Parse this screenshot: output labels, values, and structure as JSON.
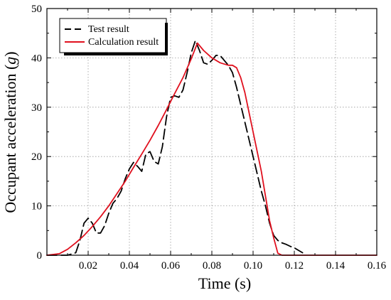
{
  "chart_data": {
    "type": "line",
    "xlabel": "Time (s)",
    "ylabel_main": "Occupant acceleration (",
    "ylabel_unit": "g",
    "ylabel_close": ")",
    "xlim": [
      0,
      0.16
    ],
    "ylim": [
      0,
      50
    ],
    "x_ticks": [
      0.02,
      0.04,
      0.06,
      0.08,
      0.1,
      0.12,
      0.14,
      0.16
    ],
    "x_tick_labels": [
      "0.02",
      "0.04",
      "0.06",
      "0.08",
      "0.10",
      "0.12",
      "0.14",
      "0.16"
    ],
    "y_ticks": [
      0,
      10,
      20,
      30,
      40,
      50
    ],
    "y_tick_labels": [
      "0",
      "10",
      "20",
      "30",
      "40",
      "50"
    ],
    "grid": "dotted",
    "legend_position": "top-left",
    "series": [
      {
        "name": "Test result",
        "color": "#000000",
        "style": "dashed",
        "points": [
          [
            0.0,
            0
          ],
          [
            0.01,
            0
          ],
          [
            0.014,
            0.5
          ],
          [
            0.016,
            3
          ],
          [
            0.018,
            6.5
          ],
          [
            0.02,
            7.5
          ],
          [
            0.022,
            6.5
          ],
          [
            0.024,
            4.5
          ],
          [
            0.026,
            4.5
          ],
          [
            0.028,
            6
          ],
          [
            0.03,
            8.5
          ],
          [
            0.032,
            10.5
          ],
          [
            0.034,
            11.5
          ],
          [
            0.036,
            13
          ],
          [
            0.038,
            15.5
          ],
          [
            0.04,
            17.5
          ],
          [
            0.042,
            18.8
          ],
          [
            0.044,
            18
          ],
          [
            0.046,
            17
          ],
          [
            0.048,
            20.5
          ],
          [
            0.05,
            21
          ],
          [
            0.052,
            19
          ],
          [
            0.054,
            18.5
          ],
          [
            0.056,
            22
          ],
          [
            0.058,
            28
          ],
          [
            0.06,
            32
          ],
          [
            0.062,
            32.3
          ],
          [
            0.064,
            32
          ],
          [
            0.066,
            33.5
          ],
          [
            0.068,
            37
          ],
          [
            0.07,
            41
          ],
          [
            0.072,
            43.5
          ],
          [
            0.074,
            41.5
          ],
          [
            0.076,
            39
          ],
          [
            0.078,
            38.7
          ],
          [
            0.08,
            39.5
          ],
          [
            0.082,
            40.5
          ],
          [
            0.084,
            40.5
          ],
          [
            0.086,
            39.5
          ],
          [
            0.088,
            38.5
          ],
          [
            0.09,
            37
          ],
          [
            0.092,
            34
          ],
          [
            0.094,
            30.5
          ],
          [
            0.096,
            27
          ],
          [
            0.098,
            23.5
          ],
          [
            0.1,
            20
          ],
          [
            0.102,
            16.5
          ],
          [
            0.104,
            13
          ],
          [
            0.106,
            10
          ],
          [
            0.108,
            6.5
          ],
          [
            0.11,
            4
          ],
          [
            0.112,
            3
          ],
          [
            0.114,
            2.5
          ],
          [
            0.116,
            2.2
          ],
          [
            0.118,
            1.8
          ],
          [
            0.12,
            1.5
          ],
          [
            0.122,
            1
          ],
          [
            0.124,
            0.5
          ]
        ]
      },
      {
        "name": "Calculation result",
        "color": "#e0101e",
        "style": "solid",
        "points": [
          [
            0.0,
            0
          ],
          [
            0.006,
            0.3
          ],
          [
            0.01,
            1.2
          ],
          [
            0.014,
            2.5
          ],
          [
            0.018,
            4
          ],
          [
            0.022,
            5.8
          ],
          [
            0.026,
            7.8
          ],
          [
            0.03,
            10
          ],
          [
            0.034,
            12.5
          ],
          [
            0.038,
            15
          ],
          [
            0.042,
            17.8
          ],
          [
            0.046,
            20.5
          ],
          [
            0.05,
            23.3
          ],
          [
            0.054,
            26.3
          ],
          [
            0.058,
            29.5
          ],
          [
            0.062,
            32.8
          ],
          [
            0.066,
            36
          ],
          [
            0.07,
            39.8
          ],
          [
            0.073,
            43
          ],
          [
            0.076,
            41.5
          ],
          [
            0.08,
            40
          ],
          [
            0.084,
            39
          ],
          [
            0.088,
            38.5
          ],
          [
            0.09,
            38.5
          ],
          [
            0.092,
            38
          ],
          [
            0.094,
            36
          ],
          [
            0.096,
            33
          ],
          [
            0.098,
            29
          ],
          [
            0.1,
            25
          ],
          [
            0.102,
            21
          ],
          [
            0.104,
            17
          ],
          [
            0.106,
            12
          ],
          [
            0.108,
            7
          ],
          [
            0.11,
            3.5
          ],
          [
            0.112,
            0.4
          ],
          [
            0.114,
            0
          ],
          [
            0.16,
            0
          ]
        ]
      }
    ]
  }
}
